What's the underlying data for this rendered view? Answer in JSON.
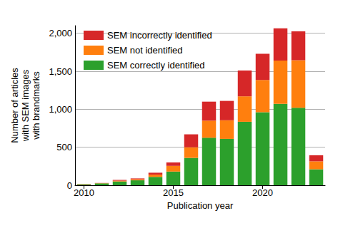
{
  "chart_data": {
    "type": "bar",
    "stacked": true,
    "x_label": "Publication year",
    "y_label": "Number of articles\nwith SEM images\nwith brandmarks",
    "categories": [
      "2010",
      null,
      null,
      null,
      null,
      "2015",
      null,
      null,
      null,
      null,
      "2020",
      null,
      null,
      null
    ],
    "series": [
      {
        "name": "SEM correctly identified",
        "color": "#2ca02c",
        "values": [
          10,
          25,
          50,
          65,
          110,
          180,
          360,
          625,
          610,
          835,
          960,
          1070,
          1020,
          210
        ]
      },
      {
        "name": "SEM not identified",
        "color": "#ff7f0e",
        "values": [
          3,
          3,
          10,
          15,
          30,
          75,
          140,
          225,
          245,
          335,
          425,
          570,
          625,
          105
        ]
      },
      {
        "name": "SEM incorrectly identified",
        "color": "#d62728",
        "values": [
          2,
          2,
          10,
          10,
          25,
          45,
          170,
          250,
          255,
          340,
          345,
          425,
          380,
          80
        ]
      }
    ],
    "ylim": [
      0,
      2100
    ],
    "yticks": [
      0,
      500,
      {
        "value": 1000,
        "label": "1,000"
      },
      {
        "value": 1500,
        "label": "1,500"
      },
      {
        "value": 2000,
        "label": "2,000"
      }
    ],
    "grid": true,
    "legend": "upper left"
  }
}
